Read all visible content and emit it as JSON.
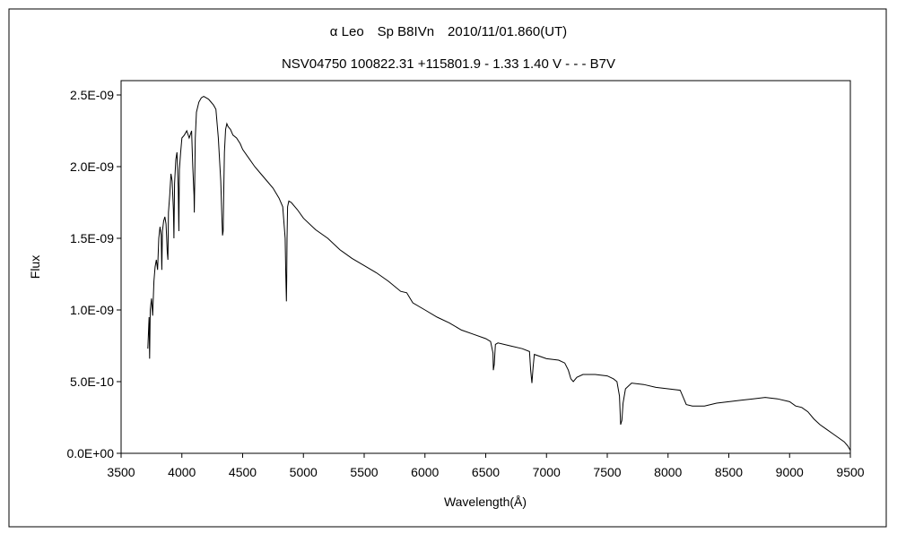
{
  "chart_data": {
    "type": "line",
    "title": "α Leo　Sp B8IVn　2010/11/01.860(UT)",
    "subtitle": "NSV04750 100822.31 +115801.9 - 1.33 1.40 V - - - B7V",
    "xlabel": "Wavelength(Å)",
    "ylabel": "Flux",
    "xlim": [
      3500,
      9500
    ],
    "ylim": [
      0,
      2.6e-09
    ],
    "x_ticks": [
      3500,
      4000,
      4500,
      5000,
      5500,
      6000,
      6500,
      7000,
      7500,
      8000,
      8500,
      9000,
      9500
    ],
    "x_tick_labels": [
      "3500",
      "4000",
      "4500",
      "5000",
      "5500",
      "6000",
      "6500",
      "7000",
      "7500",
      "8000",
      "8500",
      "9000",
      "9500"
    ],
    "y_ticks": [
      0,
      5e-10,
      1e-09,
      1.5e-09,
      2e-09,
      2.5e-09
    ],
    "y_tick_labels": [
      "0.0E+00",
      "5.0E-10",
      "1.0E-09",
      "1.5E-09",
      "2.0E-09",
      "2.5E-09"
    ],
    "grid": false,
    "line_color": "#000000",
    "series": [
      {
        "name": "",
        "x": [
          3720,
          3730,
          3735,
          3740,
          3750,
          3760,
          3770,
          3780,
          3790,
          3800,
          3810,
          3820,
          3830,
          3835,
          3840,
          3850,
          3860,
          3870,
          3880,
          3885,
          3890,
          3900,
          3910,
          3920,
          3930,
          3935,
          3940,
          3950,
          3960,
          3970,
          3975,
          3980,
          3990,
          4000,
          4020,
          4040,
          4060,
          4080,
          4090,
          4100,
          4102,
          4105,
          4110,
          4120,
          4140,
          4160,
          4180,
          4200,
          4220,
          4240,
          4260,
          4280,
          4300,
          4320,
          4330,
          4335,
          4340,
          4345,
          4350,
          4360,
          4370,
          4380,
          4400,
          4420,
          4450,
          4480,
          4500,
          4550,
          4600,
          4650,
          4700,
          4750,
          4800,
          4830,
          4850,
          4855,
          4860,
          4862,
          4865,
          4870,
          4880,
          4900,
          4950,
          5000,
          5100,
          5200,
          5300,
          5400,
          5500,
          5600,
          5700,
          5800,
          5850,
          5900,
          6000,
          6100,
          6200,
          6300,
          6400,
          6500,
          6540,
          6560,
          6563,
          6570,
          6580,
          6600,
          6700,
          6800,
          6860,
          6870,
          6880,
          6890,
          6900,
          7000,
          7100,
          7150,
          7180,
          7200,
          7220,
          7250,
          7300,
          7400,
          7500,
          7550,
          7580,
          7600,
          7610,
          7620,
          7630,
          7650,
          7700,
          7800,
          7900,
          8000,
          8100,
          8150,
          8200,
          8300,
          8400,
          8500,
          8600,
          8700,
          8800,
          8900,
          9000,
          9050,
          9100,
          9150,
          9200,
          9250,
          9300,
          9350,
          9400,
          9450,
          9480,
          9500
        ],
        "values": [
          7.3e-10,
          9.5e-10,
          6.6e-10,
          1e-09,
          1.08e-09,
          9.6e-10,
          1.2e-09,
          1.3e-09,
          1.35e-09,
          1.28e-09,
          1.5e-09,
          1.58e-09,
          1.52e-09,
          1.28e-09,
          1.55e-09,
          1.62e-09,
          1.65e-09,
          1.6e-09,
          1.4e-09,
          1.35e-09,
          1.68e-09,
          1.8e-09,
          1.95e-09,
          1.9e-09,
          1.7e-09,
          1.5e-09,
          1.88e-09,
          2.05e-09,
          2.1e-09,
          1.85e-09,
          1.55e-09,
          1.98e-09,
          2.1e-09,
          2.2e-09,
          2.22e-09,
          2.25e-09,
          2.2e-09,
          2.25e-09,
          2e-09,
          1.8e-09,
          1.68e-09,
          1.85e-09,
          2.2e-09,
          2.38e-09,
          2.45e-09,
          2.48e-09,
          2.49e-09,
          2.48e-09,
          2.47e-09,
          2.45e-09,
          2.43e-09,
          2.4e-09,
          2.2e-09,
          1.9e-09,
          1.62e-09,
          1.52e-09,
          1.55e-09,
          1.85e-09,
          2.1e-09,
          2.26e-09,
          2.3e-09,
          2.28e-09,
          2.26e-09,
          2.22e-09,
          2.2e-09,
          2.16e-09,
          2.12e-09,
          2.06e-09,
          2e-09,
          1.95e-09,
          1.9e-09,
          1.85e-09,
          1.78e-09,
          1.72e-09,
          1.5e-09,
          1.25e-09,
          1.06e-09,
          1.2e-09,
          1.5e-09,
          1.72e-09,
          1.76e-09,
          1.75e-09,
          1.7e-09,
          1.64e-09,
          1.56e-09,
          1.5e-09,
          1.42e-09,
          1.36e-09,
          1.31e-09,
          1.26e-09,
          1.2e-09,
          1.13e-09,
          1.12e-09,
          1.05e-09,
          1e-09,
          9.5e-10,
          9.1e-10,
          8.6e-10,
          8.3e-10,
          8e-10,
          7.8e-10,
          7e-10,
          5.8e-10,
          6.2e-10,
          7.6e-10,
          7.7e-10,
          7.5e-10,
          7.3e-10,
          7.1e-10,
          5.8e-10,
          4.9e-10,
          6e-10,
          6.9e-10,
          6.6e-10,
          6.5e-10,
          6.3e-10,
          5.8e-10,
          5.2e-10,
          5e-10,
          5.3e-10,
          5.5e-10,
          5.5e-10,
          5.4e-10,
          5.2e-10,
          5e-10,
          4e-10,
          2e-10,
          2.3e-10,
          3.5e-10,
          4.5e-10,
          4.9e-10,
          4.8e-10,
          4.6e-10,
          4.5e-10,
          4.4e-10,
          3.4e-10,
          3.3e-10,
          3.3e-10,
          3.5e-10,
          3.6e-10,
          3.7e-10,
          3.8e-10,
          3.9e-10,
          3.8e-10,
          3.6e-10,
          3.3e-10,
          3.2e-10,
          2.9e-10,
          2.4e-10,
          2e-10,
          1.7e-10,
          1.4e-10,
          1.1e-10,
          8e-11,
          5e-11,
          2e-11
        ]
      }
    ]
  }
}
